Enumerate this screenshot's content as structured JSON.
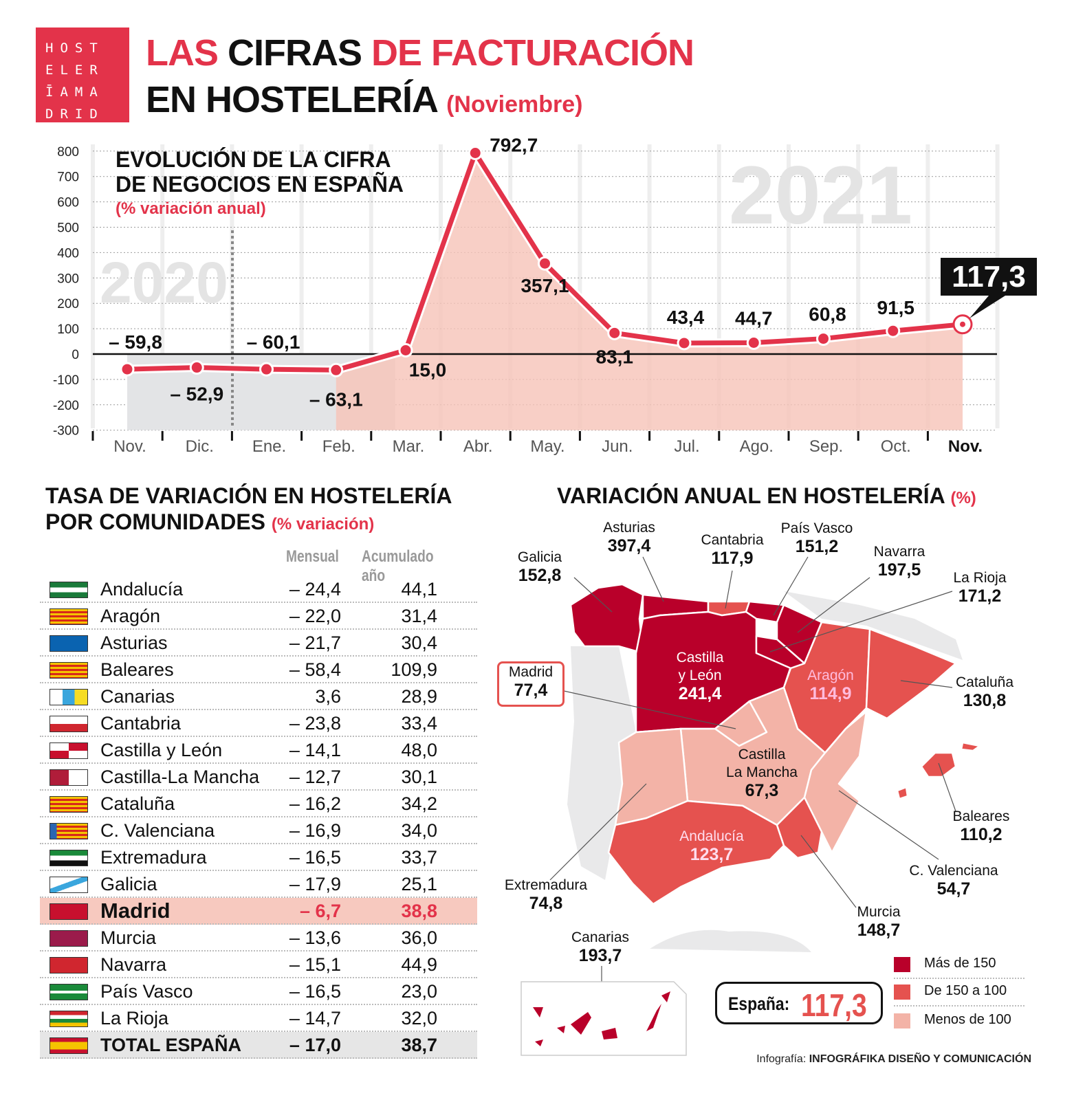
{
  "logo": {
    "lines": [
      "HOST",
      "ELER",
      "ĪAMA",
      "DRID"
    ]
  },
  "header": {
    "t1a": "LAS",
    "t1b": "CIFRAS",
    "t1c": "DE FACTURACIÓN",
    "t2a": "EN HOSTELERÍA",
    "t2b": "(Noviembre)"
  },
  "colors": {
    "accent": "#e3334a",
    "line": "#e3334a",
    "area": "#f4b9ad",
    "map_high": "#b9002a",
    "map_mid": "#e5524f",
    "map_low": "#f3b3a7"
  },
  "chart_data": {
    "type": "line",
    "title": "EVOLUCIÓN DE LA CIFRA DE NEGOCIOS EN ESPAÑA",
    "title_lines": [
      "EVOLUCIÓN DE LA CIFRA",
      "DE NEGOCIOS EN ESPAÑA"
    ],
    "subtitle": "(% variación anual)",
    "year_labels": [
      "2020",
      "2021"
    ],
    "categories": [
      "Nov.",
      "Dic.",
      "Ene.",
      "Feb.",
      "Mar.",
      "Abr.",
      "May.",
      "Jun.",
      "Jul.",
      "Ago.",
      "Sep.",
      "Oct.",
      "Nov."
    ],
    "values": [
      -59.8,
      -52.9,
      -60.1,
      -63.1,
      15.0,
      792.7,
      357.1,
      83.1,
      43.4,
      44.7,
      60.8,
      91.5,
      117.3
    ],
    "data_labels": [
      "– 59,8",
      "– 52,9",
      "– 60,1",
      "– 63,1",
      "15,0",
      "792,7",
      "357,1",
      "83,1",
      "43,4",
      "44,7",
      "60,8",
      "91,5",
      "117,3"
    ],
    "yticks": [
      "800",
      "700",
      "600",
      "500",
      "400",
      "300",
      "200",
      "100",
      "0",
      "-100",
      "-200",
      "-300"
    ],
    "ylim": [
      -300,
      800
    ],
    "grid": true,
    "highlight": "117,3"
  },
  "table": {
    "title_lines": [
      "TASA DE VARIACIÓN EN HOSTELERÍA",
      "POR COMUNIDADES"
    ],
    "subtitle": "(% variación)",
    "columns": [
      "Mensual",
      "Acumulado año"
    ],
    "rows": [
      {
        "name": "Andalucía",
        "m": "– 24,4",
        "a": "44,1"
      },
      {
        "name": "Aragón",
        "m": "– 22,0",
        "a": "31,4"
      },
      {
        "name": "Asturias",
        "m": "– 21,7",
        "a": "30,4"
      },
      {
        "name": "Baleares",
        "m": "– 58,4",
        "a": "109,9"
      },
      {
        "name": "Canarias",
        "m": "3,6",
        "a": "28,9"
      },
      {
        "name": "Cantabria",
        "m": "– 23,8",
        "a": "33,4"
      },
      {
        "name": "Castilla y León",
        "m": "– 14,1",
        "a": "48,0"
      },
      {
        "name": "Castilla-La Mancha",
        "m": "– 12,7",
        "a": "30,1"
      },
      {
        "name": "Cataluña",
        "m": "– 16,2",
        "a": "34,2"
      },
      {
        "name": "C. Valenciana",
        "m": "– 16,9",
        "a": "34,0"
      },
      {
        "name": "Extremadura",
        "m": "– 16,5",
        "a": "33,7"
      },
      {
        "name": "Galicia",
        "m": "– 17,9",
        "a": "25,1"
      },
      {
        "name": "Madrid",
        "m": "– 6,7",
        "a": "38,8"
      },
      {
        "name": "Murcia",
        "m": "– 13,6",
        "a": "36,0"
      },
      {
        "name": "Navarra",
        "m": "– 15,1",
        "a": "44,9"
      },
      {
        "name": "País Vasco",
        "m": "– 16,5",
        "a": "23,0"
      },
      {
        "name": "La Rioja",
        "m": "– 14,7",
        "a": "32,0"
      },
      {
        "name": "TOTAL ESPAÑA",
        "m": "– 17,0",
        "a": "38,7"
      }
    ]
  },
  "map": {
    "title": "VARIACIÓN ANUAL EN HOSTELERÍA",
    "title_unit": "(%)",
    "regions": {
      "galicia": {
        "name": "Galicia",
        "value": "152,8"
      },
      "asturias": {
        "name": "Asturias",
        "value": "397,4"
      },
      "cantabria": {
        "name": "Cantabria",
        "value": "117,9"
      },
      "paisvasco": {
        "name": "País Vasco",
        "value": "151,2"
      },
      "navarra": {
        "name": "Navarra",
        "value": "197,5"
      },
      "larioja": {
        "name": "La Rioja",
        "value": "171,2"
      },
      "cyl": {
        "name1": "Castilla",
        "name2": "y León",
        "value": "241,4"
      },
      "aragon": {
        "name": "Aragón",
        "value": "114,9"
      },
      "cataluna": {
        "name": "Cataluña",
        "value": "130,8"
      },
      "madrid": {
        "name": "Madrid",
        "value": "77,4"
      },
      "clm": {
        "name1": "Castilla",
        "name2": "La Mancha",
        "value": "67,3"
      },
      "baleares": {
        "name": "Baleares",
        "value": "110,2"
      },
      "valenciana": {
        "name": "C. Valenciana",
        "value": "54,7"
      },
      "extremadura": {
        "name": "Extremadura",
        "value": "74,8"
      },
      "andalucia": {
        "name": "Andalucía",
        "value": "123,7"
      },
      "murcia": {
        "name": "Murcia",
        "value": "148,7"
      },
      "canarias": {
        "name": "Canarias",
        "value": "193,7"
      }
    },
    "total_label": "España:",
    "total_value": "117,3",
    "legend": [
      "Más de 150",
      "De 150 a 100",
      "Menos de 100"
    ]
  },
  "credit": {
    "prefix": "Infografía: ",
    "name": "INFOGRÁFIKA DISEÑO Y COMUNICACIÓN"
  }
}
